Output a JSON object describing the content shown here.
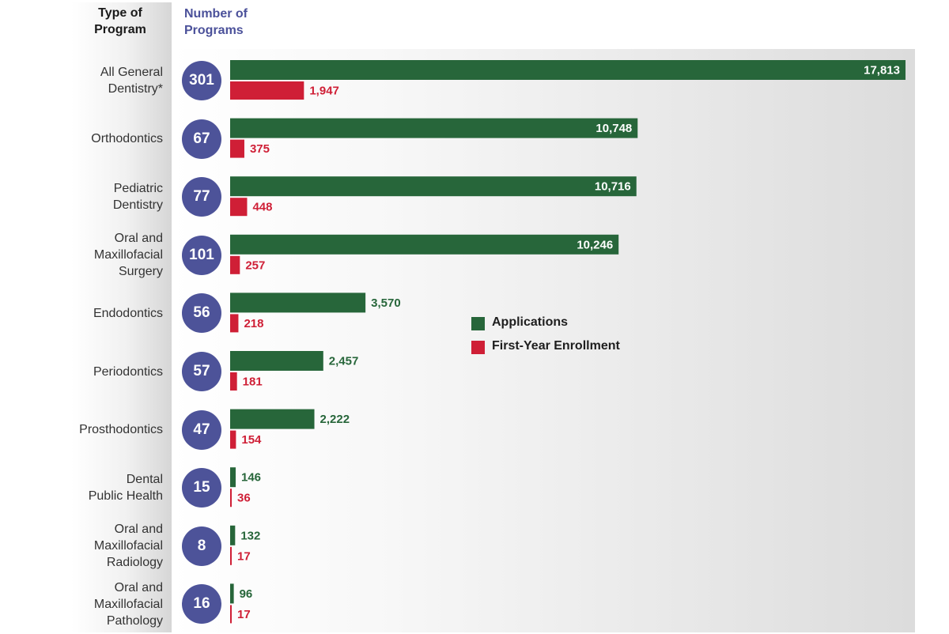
{
  "headers": {
    "type_of_program": "Type of\nProgram",
    "number_of_programs": "Number of\nPrograms"
  },
  "colors": {
    "applications": "#27663a",
    "enrollment": "#cf1f36",
    "circle": "#4d5399",
    "header_accent": "#4b519a"
  },
  "legend": [
    {
      "label": "Applications",
      "color": "#27663a"
    },
    {
      "label": "First-Year Enrollment",
      "color": "#cf1f36"
    }
  ],
  "chart_data": {
    "type": "bar",
    "orientation": "horizontal",
    "categories": [
      "All General\nDentistry*",
      "Orthodontics",
      "Pediatric\nDentistry",
      "Oral and\nMaxillofacial\nSurgery",
      "Endodontics",
      "Periodontics",
      "Prosthodontics",
      "Dental\nPublic Health",
      "Oral and\nMaxillofacial\nRadiology",
      "Oral and\nMaxillofacial\nPathology"
    ],
    "programs": [
      "301",
      "67",
      "77",
      "101",
      "56",
      "57",
      "47",
      "15",
      "8",
      "16"
    ],
    "series": [
      {
        "name": "Applications",
        "values": [
          17813,
          10748,
          10716,
          10246,
          3570,
          2457,
          2222,
          146,
          132,
          96
        ]
      },
      {
        "name": "First-Year Enrollment",
        "values": [
          1947,
          375,
          448,
          257,
          218,
          181,
          154,
          36,
          17,
          17
        ]
      }
    ],
    "legend_position": "center-right"
  }
}
